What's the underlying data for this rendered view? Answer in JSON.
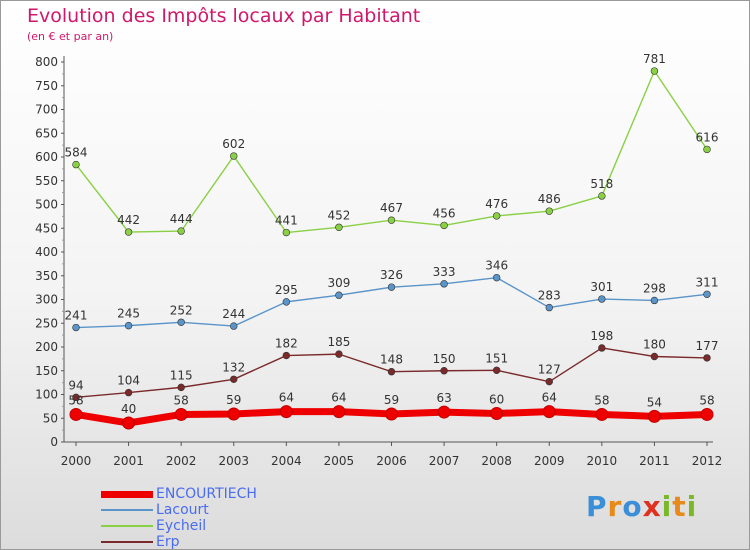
{
  "title": "Evolution des Impôts locaux par Habitant",
  "subtitle": "(en € et par an)",
  "brand": {
    "text": "Proxiti",
    "letters": [
      {
        "ch": "P",
        "color": "#3a8fd8"
      },
      {
        "ch": "r",
        "color": "#e88a1a"
      },
      {
        "ch": "o",
        "color": "#3a8fd8"
      },
      {
        "ch": "x",
        "color": "#e03020"
      },
      {
        "ch": "i",
        "color": "#7ab829"
      },
      {
        "ch": "t",
        "color": "#e88a1a"
      },
      {
        "ch": "i",
        "color": "#7ab829"
      }
    ]
  },
  "chart_data": {
    "type": "line",
    "categories": [
      "2000",
      "2001",
      "2002",
      "2003",
      "2004",
      "2005",
      "2006",
      "2007",
      "2008",
      "2009",
      "2010",
      "2011",
      "2012"
    ],
    "ylim": [
      0,
      800
    ],
    "yticks": [
      0,
      50,
      100,
      150,
      200,
      250,
      300,
      350,
      400,
      450,
      500,
      550,
      600,
      650,
      700,
      750,
      800
    ],
    "grid": false,
    "legend_position": "bottom-left",
    "series": [
      {
        "name": "Eycheil",
        "color": "#8ad045",
        "values": [
          584,
          442,
          444,
          602,
          441,
          452,
          467,
          456,
          476,
          486,
          518,
          781,
          616
        ]
      },
      {
        "name": "Lacourt",
        "color": "#5a94c8",
        "values": [
          241,
          245,
          252,
          244,
          295,
          309,
          326,
          333,
          346,
          283,
          301,
          298,
          311
        ]
      },
      {
        "name": "Erp",
        "color": "#7a2a2a",
        "values": [
          94,
          104,
          115,
          132,
          182,
          185,
          148,
          150,
          151,
          127,
          198,
          180,
          177
        ]
      },
      {
        "name": "ENCOURTIECH",
        "color": "#ee0000",
        "values": [
          58,
          40,
          58,
          59,
          64,
          64,
          59,
          63,
          60,
          64,
          58,
          54,
          58
        ]
      }
    ],
    "legend_order": [
      "ENCOURTIECH",
      "Lacourt",
      "Eycheil",
      "Erp"
    ]
  }
}
